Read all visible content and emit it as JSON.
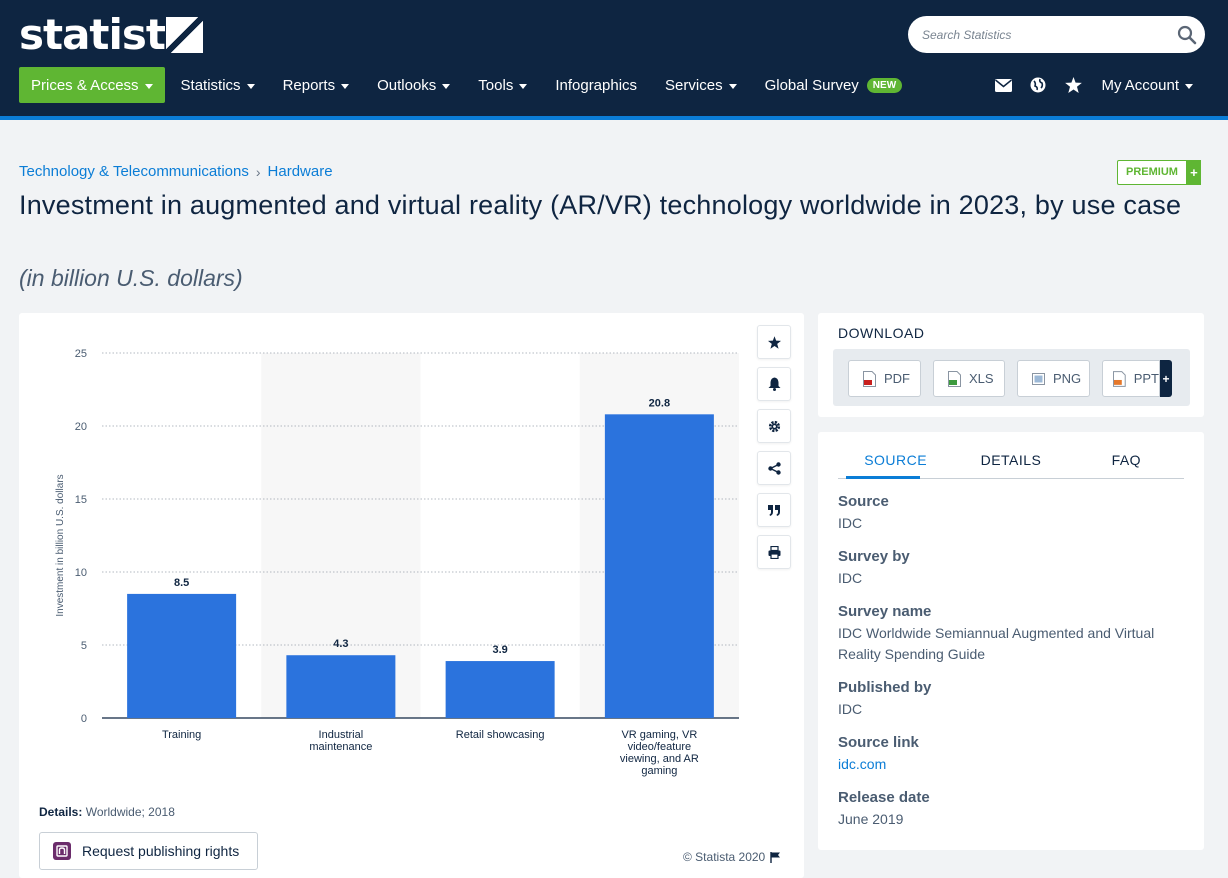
{
  "header": {
    "logo": "statista",
    "search_placeholder": "Search Statistics",
    "nav": [
      {
        "label": "Prices & Access",
        "caret": true
      },
      {
        "label": "Statistics",
        "caret": true
      },
      {
        "label": "Reports",
        "caret": true
      },
      {
        "label": "Outlooks",
        "caret": true
      },
      {
        "label": "Tools",
        "caret": true
      },
      {
        "label": "Infographics",
        "caret": false
      },
      {
        "label": "Services",
        "caret": true
      },
      {
        "label": "Global Survey",
        "caret": false
      }
    ],
    "new_badge": "NEW",
    "account_label": "My Account"
  },
  "breadcrumb": [
    "Technology & Telecommunications",
    "Hardware"
  ],
  "premium": {
    "label": "PREMIUM",
    "plus": "+"
  },
  "title": "Investment in augmented and virtual reality (AR/VR) technology worldwide in 2023, by use case",
  "subtitle": "(in billion U.S. dollars)",
  "chart_data": {
    "type": "bar",
    "categories": [
      "Training",
      "Industrial maintenance",
      "Retail showcasing",
      "VR gaming, VR video/feature viewing, and AR gaming"
    ],
    "values": [
      8.5,
      4.3,
      3.9,
      20.8
    ],
    "value_labels": [
      "8.5",
      "4.3",
      "3.9",
      "20.8"
    ],
    "title": "",
    "xlabel": "",
    "ylabel": "Investment in billion U.S. dollars",
    "ylim": [
      0,
      25
    ],
    "yticks": [
      0,
      5,
      10,
      15,
      20,
      25
    ],
    "grid": true,
    "bar_color": "#2b73dd"
  },
  "details": {
    "label": "Details:",
    "value": "Worldwide; 2018"
  },
  "rights_button": "Request publishing rights",
  "copyright": "© Statista 2020",
  "download": {
    "title": "DOWNLOAD",
    "buttons": [
      "PDF",
      "XLS",
      "PNG",
      "PPT"
    ],
    "ppt_plus": "+"
  },
  "source_tabs": [
    "SOURCE",
    "DETAILS",
    "FAQ"
  ],
  "source": [
    {
      "key": "Source",
      "value": "IDC"
    },
    {
      "key": "Survey by",
      "value": "IDC"
    },
    {
      "key": "Survey name",
      "value": "IDC Worldwide Semiannual Augmented and Virtual Reality Spending Guide"
    },
    {
      "key": "Published by",
      "value": "IDC"
    },
    {
      "key": "Source link",
      "value": "idc.com"
    },
    {
      "key": "Release date",
      "value": "June 2019"
    }
  ],
  "colors": {
    "header_bg": "#0e2541",
    "accent_green": "#5fb633",
    "link_blue": "#0b7dd6",
    "bar_blue": "#2b73dd"
  }
}
